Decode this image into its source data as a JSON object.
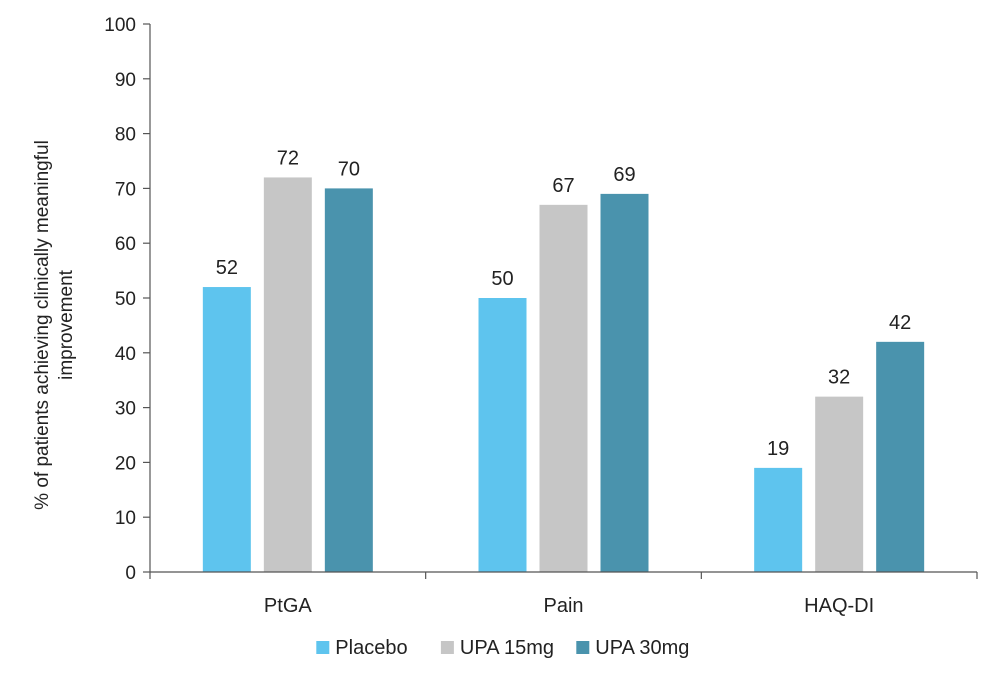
{
  "chart_data": {
    "type": "bar",
    "title": "",
    "categories": [
      "PtGA",
      "Pain",
      "HAQ-DI"
    ],
    "series": [
      {
        "name": "Placebo",
        "values": [
          52,
          50,
          19
        ],
        "color": "#5EC4EE"
      },
      {
        "name": "UPA 15mg",
        "values": [
          72,
          67,
          32
        ],
        "color": "#C6C6C6"
      },
      {
        "name": "UPA 30mg",
        "values": [
          70,
          69,
          42
        ],
        "color": "#4A93AD"
      }
    ],
    "ylabel_lines": [
      "% of patients achieving clinically meaningful",
      "improvement"
    ],
    "xlabel": "",
    "ylim": [
      0,
      100
    ],
    "yticks": [
      0,
      10,
      20,
      30,
      40,
      50,
      60,
      70,
      80,
      90,
      100
    ],
    "grid": false,
    "legend_position": "bottom-center",
    "data_labels": true
  }
}
